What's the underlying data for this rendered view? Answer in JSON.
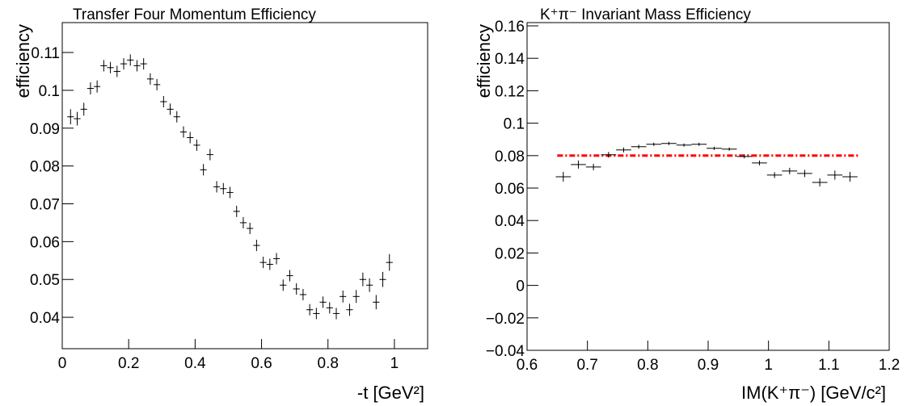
{
  "chart_data": [
    {
      "type": "scatter",
      "title": "Transfer Four Momentum Efficiency",
      "xlabel": "-t [GeV²]",
      "ylabel": "efficiency",
      "x": [
        0.025,
        0.045,
        0.065,
        0.085,
        0.105,
        0.125,
        0.145,
        0.165,
        0.185,
        0.205,
        0.225,
        0.245,
        0.265,
        0.285,
        0.305,
        0.325,
        0.345,
        0.365,
        0.385,
        0.405,
        0.425,
        0.445,
        0.465,
        0.485,
        0.505,
        0.525,
        0.545,
        0.565,
        0.585,
        0.605,
        0.625,
        0.645,
        0.665,
        0.685,
        0.705,
        0.725,
        0.745,
        0.765,
        0.785,
        0.805,
        0.825,
        0.845,
        0.865,
        0.885,
        0.905,
        0.925,
        0.945,
        0.965,
        0.985
      ],
      "values": [
        0.093,
        0.0925,
        0.095,
        0.1005,
        0.101,
        0.1065,
        0.106,
        0.105,
        0.107,
        0.108,
        0.1065,
        0.107,
        0.103,
        0.1015,
        0.097,
        0.095,
        0.093,
        0.089,
        0.0875,
        0.0855,
        0.079,
        0.083,
        0.0745,
        0.074,
        0.073,
        0.068,
        0.065,
        0.0635,
        0.059,
        0.0545,
        0.054,
        0.0555,
        0.0485,
        0.051,
        0.0475,
        0.046,
        0.042,
        0.041,
        0.044,
        0.0425,
        0.041,
        0.0455,
        0.042,
        0.0455,
        0.05,
        0.0485,
        0.044,
        0.05,
        0.0545
      ],
      "errors": [
        0.002,
        0.0018,
        0.0017,
        0.0016,
        0.0016,
        0.0015,
        0.0015,
        0.0015,
        0.0015,
        0.0015,
        0.0015,
        0.0015,
        0.0015,
        0.0015,
        0.0015,
        0.0015,
        0.0015,
        0.0015,
        0.0015,
        0.0015,
        0.0015,
        0.0015,
        0.0015,
        0.0015,
        0.0015,
        0.0015,
        0.0015,
        0.0015,
        0.0015,
        0.0015,
        0.0015,
        0.0015,
        0.0015,
        0.0015,
        0.0015,
        0.0015,
        0.0015,
        0.0015,
        0.0015,
        0.0015,
        0.0015,
        0.0016,
        0.0016,
        0.0017,
        0.0018,
        0.0018,
        0.0019,
        0.002,
        0.0022
      ],
      "xerr": 0.01,
      "color": "#000000",
      "xlim": [
        0,
        1.1
      ],
      "ylim": [
        0.0317,
        0.1179
      ],
      "xticks": [
        0,
        0.2,
        0.4,
        0.6,
        0.8,
        1
      ],
      "yticks": [
        0.04,
        0.05,
        0.06,
        0.07,
        0.08,
        0.09,
        0.1,
        0.11
      ]
    },
    {
      "type": "scatter",
      "title": "K⁺π⁻ Invariant Mass Efficiency",
      "xlabel": "IM(K⁺π⁻) [GeV/c²]",
      "ylabel": "efficiency",
      "x": [
        0.66,
        0.685,
        0.71,
        0.735,
        0.76,
        0.785,
        0.81,
        0.835,
        0.86,
        0.885,
        0.91,
        0.935,
        0.96,
        0.985,
        1.01,
        1.035,
        1.06,
        1.085,
        1.11,
        1.135
      ],
      "values": [
        0.067,
        0.0745,
        0.073,
        0.0805,
        0.0835,
        0.0855,
        0.087,
        0.0875,
        0.0865,
        0.087,
        0.0845,
        0.084,
        0.0795,
        0.0755,
        0.068,
        0.0705,
        0.069,
        0.0635,
        0.068,
        0.067
      ],
      "errors": [
        0.003,
        0.0025,
        0.002,
        0.0018,
        0.0015,
        0.0012,
        0.001,
        0.001,
        0.001,
        0.001,
        0.001,
        0.001,
        0.0012,
        0.0015,
        0.0018,
        0.002,
        0.0022,
        0.0025,
        0.0028,
        0.003
      ],
      "xerr": 0.0125,
      "color": "#000000",
      "fit_line": {
        "value": 0.08,
        "xrange": [
          0.65,
          1.15
        ],
        "color": "#ff0000"
      },
      "xlim": [
        0.6,
        1.2
      ],
      "ylim": [
        -0.04,
        0.162
      ],
      "xticks": [
        0.6,
        0.7,
        0.8,
        0.9,
        1,
        1.1,
        1.2
      ],
      "yticks": [
        {
          "value": -0.04,
          "label": "−0.04"
        },
        {
          "value": -0.02,
          "label": "−0.02"
        },
        0,
        0.02,
        0.04,
        0.06,
        0.08,
        0.1,
        0.12,
        0.14,
        0.16
      ]
    }
  ]
}
